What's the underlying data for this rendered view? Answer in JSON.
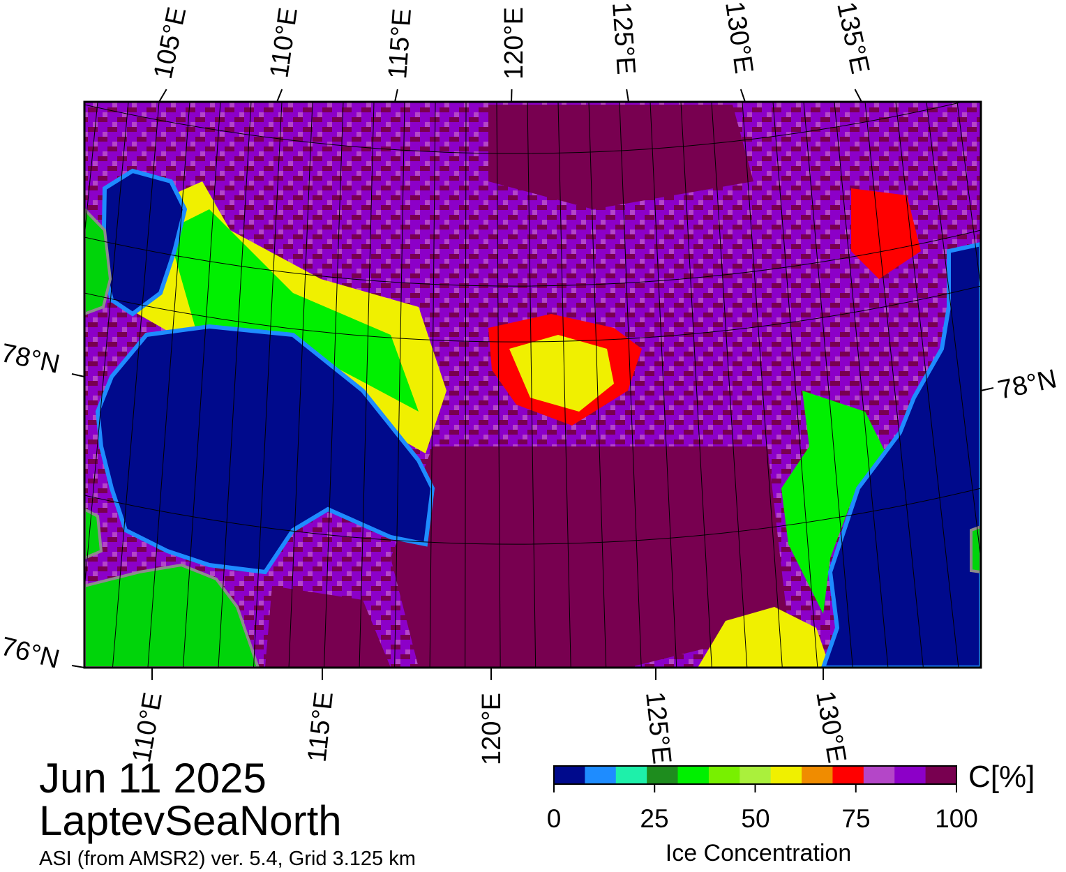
{
  "map": {
    "date": "Jun 11 2025",
    "region": "LaptevSeaNorth",
    "subtitle": "ASI (from AMSR2) ver. 5.4,  Grid 3.125 km",
    "lat_labels": [
      "78°N",
      "76°N",
      "78°N"
    ],
    "lon_labels_top": [
      "105°E",
      "110°E",
      "115°E",
      "120°E",
      "125°E",
      "130°E",
      "135°E"
    ],
    "lon_labels_bottom": [
      "110°E",
      "115°E",
      "120°E",
      "125°E",
      "130°E"
    ],
    "colors": {
      "ocean": "#000a8c",
      "land": "#00d40a",
      "coast": "#8c8c8c",
      "ice_dark": "#780050",
      "ice_purple": "#8c00c8",
      "ice_lilac": "#b446c8",
      "ice_red": "#ff0000",
      "ice_yellow": "#f0f000",
      "ice_green": "#00f000"
    }
  },
  "colorbar": {
    "title": "Ice Concentration",
    "unit": "C[%]",
    "ticks": [
      "0",
      "25",
      "50",
      "75",
      "100"
    ],
    "colors": [
      "#000a8c",
      "#1e8cff",
      "#1ef0aa",
      "#1e8c1e",
      "#00f000",
      "#78f000",
      "#aaf03c",
      "#f0f000",
      "#f08c00",
      "#ff0000",
      "#b446c8",
      "#8c00c8",
      "#780050"
    ]
  }
}
